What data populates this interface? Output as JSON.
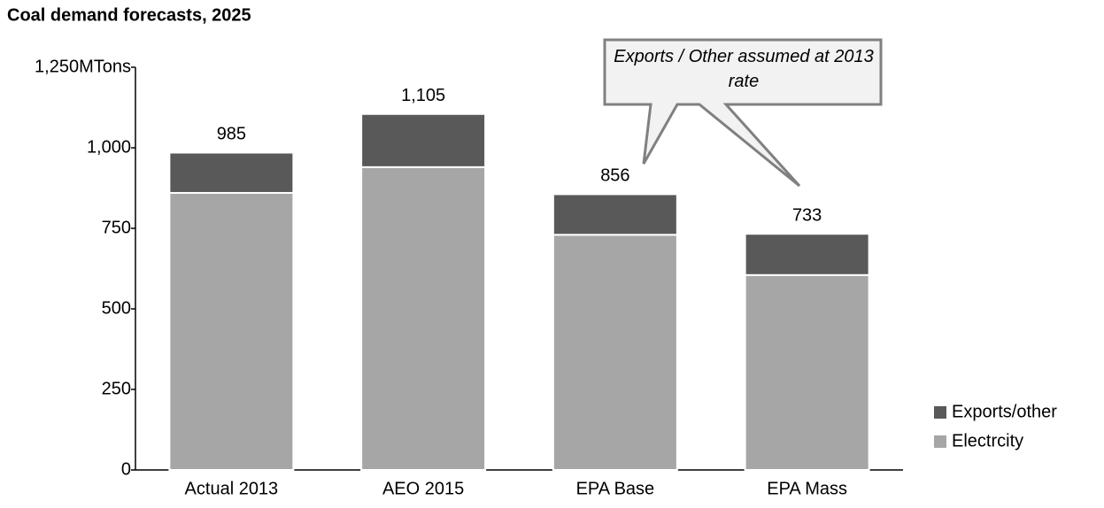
{
  "chart_data": {
    "type": "stacked_bar",
    "title": "Coal demand forecasts, 2025",
    "categories": [
      "Actual 2013",
      "AEO 2015",
      "EPA Base",
      "EPA Mass"
    ],
    "series": [
      {
        "name": "Electrcity",
        "color": "#a6a6a6",
        "values": [
          860,
          940,
          730,
          605
        ]
      },
      {
        "name": "Exports/other",
        "color": "#595959",
        "values": [
          125,
          165,
          126,
          128
        ]
      }
    ],
    "totals": {
      "values": [
        985,
        1105,
        856,
        733
      ],
      "value_labels": [
        "985",
        "1,105",
        "856",
        "733"
      ]
    },
    "ylim": [
      0,
      1250
    ],
    "yticks": [
      0,
      250,
      500,
      750,
      {
        "value": 1000,
        "label": "1,000"
      },
      {
        "value": 1250,
        "label": "1,250MTons"
      }
    ],
    "grid": false,
    "legend": "bottom-right",
    "annotation": "Exports / Other assumed at 2013 rate"
  }
}
